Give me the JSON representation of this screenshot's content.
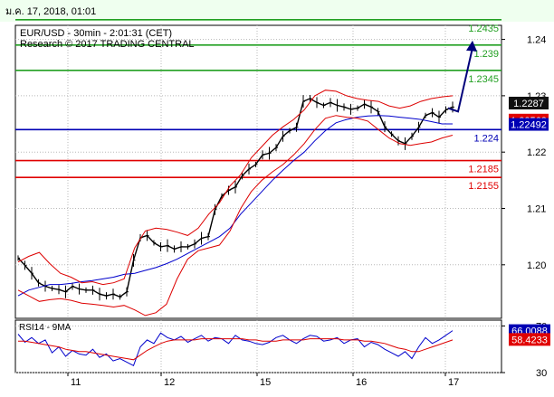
{
  "header": {
    "timestamp": "ม.ค. 17, 2018, 01:01"
  },
  "chart_data": [
    {
      "type": "line",
      "title": "EUR/USD - 30min - 2:01:31 (CET)",
      "subtitle": "Research © 2017 TRADING CENTRAL",
      "ylim": [
        1.1905,
        1.2425
      ],
      "y_ticks": [
        "1.24",
        "1.23",
        "1.22",
        "1.21",
        "1.20"
      ],
      "x_ticks": [
        "11",
        "12",
        "15",
        "16",
        "17"
      ],
      "grid": true,
      "levels": [
        {
          "label": "1.2435",
          "value": 1.2435,
          "color": "#22a022",
          "kind": "resistance"
        },
        {
          "label": "1.239",
          "value": 1.239,
          "color": "#22a022",
          "kind": "resistance"
        },
        {
          "label": "1.2345",
          "value": 1.2345,
          "color": "#22a022",
          "kind": "resistance"
        },
        {
          "label": "1.224",
          "value": 1.224,
          "color": "#0000b4",
          "kind": "pivot"
        },
        {
          "label": "1.2185",
          "value": 1.2185,
          "color": "#e00000",
          "kind": "support"
        },
        {
          "label": "1.2155",
          "value": 1.2155,
          "color": "#e00000",
          "kind": "support"
        }
      ],
      "price_badges": [
        {
          "label": "1.2287",
          "value": 1.2287,
          "bg": "#111111",
          "fg": "#ffffff"
        },
        {
          "label": "1.22568",
          "value": 1.22568,
          "bg": "#e00000",
          "fg": "#ffffff"
        },
        {
          "label": "1.22492",
          "value": 1.22492,
          "bg": "#0000b4",
          "fg": "#ffffff"
        }
      ],
      "series": [
        {
          "kind": "price",
          "color": "#000000",
          "values": [
            1.2012,
            1.1999,
            1.1985,
            1.1968,
            1.1962,
            1.1958,
            1.1956,
            1.1952,
            1.1962,
            1.1957,
            1.1955,
            1.1955,
            1.1948,
            1.1945,
            1.1948,
            1.1943,
            1.1952,
            1.2008,
            1.2048,
            1.2052,
            1.2039,
            1.2032,
            1.2034,
            1.2028,
            1.2032,
            1.2032,
            1.2037,
            1.2047,
            1.205,
            1.2098,
            1.2122,
            1.2132,
            1.2138,
            1.2158,
            1.217,
            1.2178,
            1.2195,
            1.2198,
            1.2208,
            1.2228,
            1.2238,
            1.2244,
            1.229,
            1.2295,
            1.2288,
            1.2283,
            1.2288,
            1.2283,
            1.228,
            1.2276,
            1.2278,
            1.2285,
            1.228,
            1.2272,
            1.2245,
            1.2232,
            1.222,
            1.2215,
            1.2228,
            1.2244,
            1.2265,
            1.227,
            1.2262,
            1.2275,
            1.228
          ]
        },
        {
          "kind": "moving-average",
          "color": "#0000cc",
          "values": [
            1.1945,
            1.1955,
            1.196,
            1.1965,
            1.1965,
            1.1967,
            1.197,
            1.1972,
            1.1975,
            1.1978,
            1.1983,
            1.1985,
            1.199,
            1.1995,
            1.2002,
            1.201,
            1.202,
            1.203,
            1.204,
            1.205,
            1.2065,
            1.209,
            1.211,
            1.213,
            1.215,
            1.2168,
            1.2185,
            1.22,
            1.222,
            1.2238,
            1.2252,
            1.2258,
            1.2262,
            1.2264,
            1.2265,
            1.2264,
            1.2262,
            1.226,
            1.2258,
            1.2254,
            1.225,
            1.225
          ]
        },
        {
          "kind": "bollinger-upper",
          "color": "#dd0000",
          "values": [
            1.2005,
            1.2015,
            1.2022,
            1.2002,
            1.1985,
            1.1978,
            1.1968,
            1.197,
            1.1965,
            1.1968,
            1.1975,
            1.203,
            1.206,
            1.2065,
            1.2063,
            1.2058,
            1.2052,
            1.2065,
            1.209,
            1.211,
            1.214,
            1.216,
            1.219,
            1.221,
            1.223,
            1.2245,
            1.2258,
            1.2275,
            1.23,
            1.231,
            1.2308,
            1.23,
            1.2295,
            1.2292,
            1.229,
            1.2282,
            1.2278,
            1.2282,
            1.229,
            1.2295,
            1.2298,
            1.23
          ]
        },
        {
          "kind": "bollinger-lower",
          "color": "#dd0000",
          "values": [
            1.1955,
            1.1945,
            1.1935,
            1.1938,
            1.194,
            1.1937,
            1.1932,
            1.193,
            1.1928,
            1.1925,
            1.1928,
            1.192,
            1.191,
            1.1915,
            1.193,
            1.1975,
            1.201,
            1.2025,
            1.203,
            1.2035,
            1.206,
            1.21,
            1.213,
            1.215,
            1.2165,
            1.2178,
            1.2195,
            1.2215,
            1.224,
            1.226,
            1.2265,
            1.2262,
            1.226,
            1.2255,
            1.224,
            1.2225,
            1.2215,
            1.2212,
            1.2215,
            1.2218,
            1.2225,
            1.223
          ]
        }
      ],
      "forecast_arrow": {
        "color": "#00007a",
        "from_value": 1.2278,
        "via_value": 1.2272,
        "to_value": 1.2398
      }
    },
    {
      "type": "line",
      "title": "RSI14 - 9MA",
      "ylim": [
        30,
        75
      ],
      "y_ticks": [
        "70",
        "30"
      ],
      "current_value": {
        "label": "66.0088",
        "value": 66.0088,
        "bg": "#0000b4",
        "fg": "#ffffff"
      },
      "ma_value": {
        "label": "58.4233",
        "value": 58.4233,
        "bg": "#e00000",
        "fg": "#ffffff"
      },
      "series": [
        {
          "kind": "rsi",
          "color": "#0000cc",
          "values": [
            63,
            56,
            60,
            55,
            58,
            47,
            52,
            44,
            49,
            46,
            45,
            50,
            43,
            46,
            40,
            42,
            39,
            36,
            52,
            58,
            55,
            64,
            60,
            58,
            61,
            56,
            59,
            62,
            57,
            60,
            59,
            55,
            62,
            58,
            57,
            55,
            54,
            56,
            60,
            62,
            58,
            55,
            59,
            62,
            61,
            57,
            58,
            60,
            55,
            58,
            59,
            52,
            56,
            54,
            50,
            47,
            44,
            48,
            42,
            52,
            60,
            55,
            58,
            62,
            66
          ]
        },
        {
          "kind": "rsi-ma",
          "color": "#dd0000",
          "values": [
            57,
            57,
            56,
            55,
            54,
            53,
            52,
            50,
            49,
            48,
            48,
            47,
            46,
            45,
            44,
            43,
            42,
            41,
            45,
            49,
            52,
            55,
            57,
            58,
            58,
            58,
            58,
            59,
            59,
            59,
            59,
            59,
            59,
            59,
            58,
            58,
            57,
            57,
            57,
            58,
            58,
            58,
            58,
            59,
            59,
            59,
            59,
            59,
            58,
            58,
            58,
            57,
            57,
            56,
            55,
            53,
            51,
            50,
            48,
            48,
            50,
            52,
            54,
            56,
            58
          ]
        }
      ]
    }
  ]
}
